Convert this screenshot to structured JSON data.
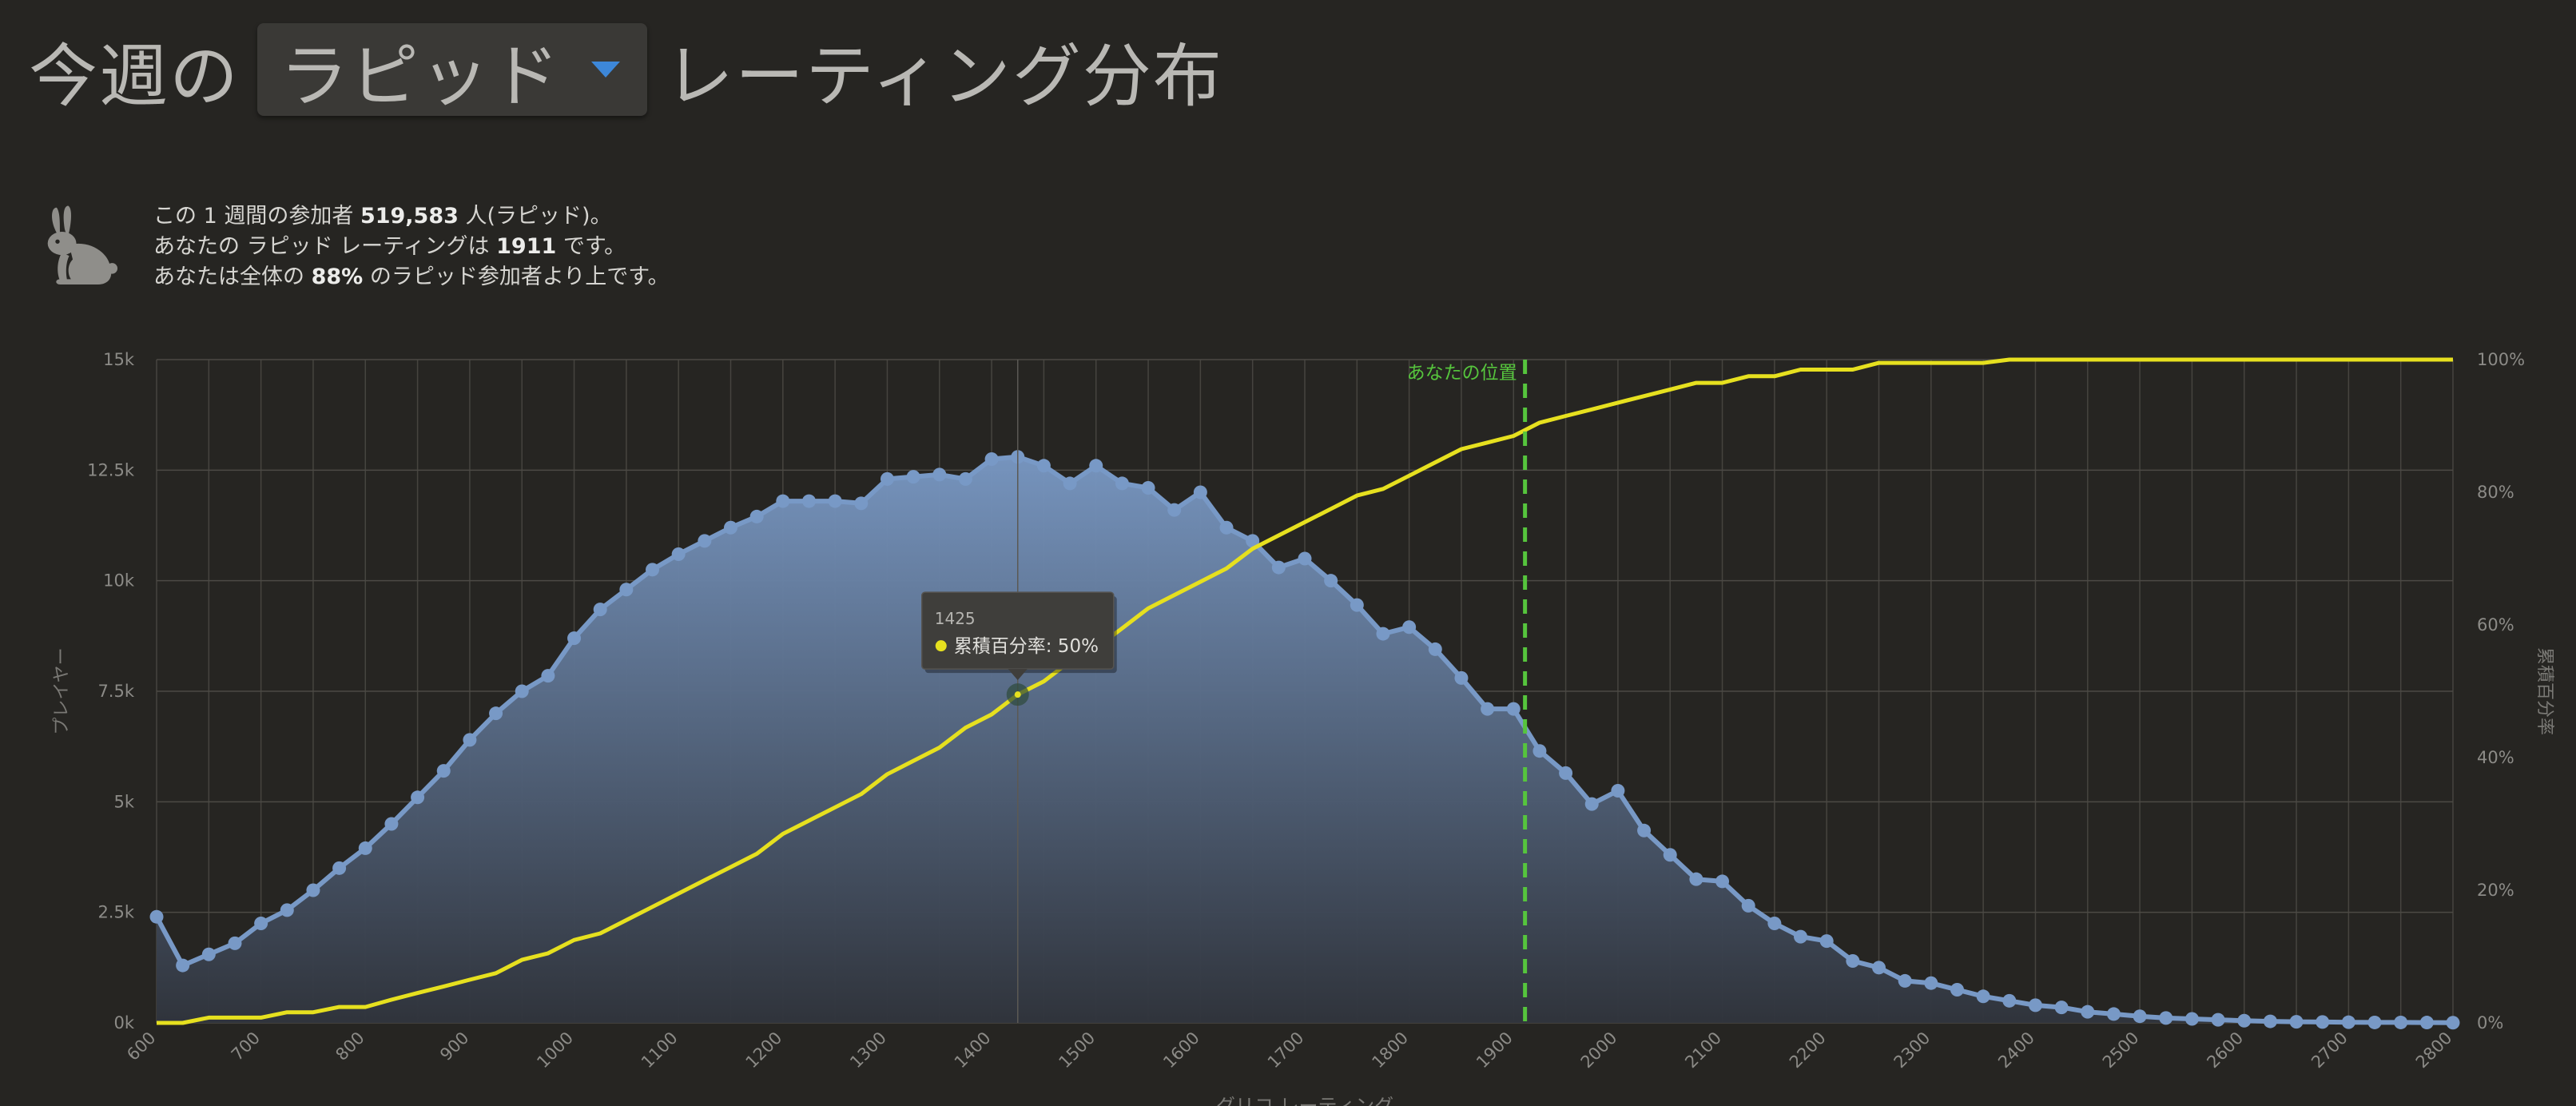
{
  "header": {
    "prefix": "今週の",
    "dropdown_value": "ラピッド",
    "suffix": "レーティング分布"
  },
  "info": {
    "line1": {
      "a": "この 1 週間の参加者 ",
      "count": "519,583",
      "b": " 人(ラピッド)。"
    },
    "line2": {
      "a": "あなたの ラピッド レーティングは ",
      "rating": "1911",
      "b": " です。"
    },
    "line3": {
      "a": "あなたは全体の ",
      "pct": "88%",
      "b": " のラピッド参加者より上です。"
    }
  },
  "colors": {
    "players_line": "#7899c6",
    "cumulative_line": "#e6e01f",
    "marker_line": "#56c53d",
    "background": "#262522"
  },
  "tooltip": {
    "title": "1425",
    "label": "累積百分率: 50%"
  },
  "chart_data": {
    "type": "area",
    "x": [
      600,
      625,
      650,
      675,
      700,
      725,
      750,
      775,
      800,
      825,
      850,
      875,
      900,
      925,
      950,
      975,
      1000,
      1025,
      1050,
      1075,
      1100,
      1125,
      1150,
      1175,
      1200,
      1225,
      1250,
      1275,
      1300,
      1325,
      1350,
      1375,
      1400,
      1425,
      1450,
      1475,
      1500,
      1525,
      1550,
      1575,
      1600,
      1625,
      1650,
      1675,
      1700,
      1725,
      1750,
      1775,
      1800,
      1825,
      1850,
      1875,
      1900,
      1925,
      1950,
      1975,
      2000,
      2025,
      2050,
      2075,
      2100,
      2125,
      2150,
      2175,
      2200,
      2225,
      2250,
      2275,
      2300,
      2325,
      2350,
      2375,
      2400,
      2425,
      2450,
      2475,
      2500,
      2525,
      2550,
      2575,
      2600,
      2625,
      2650,
      2675,
      2700,
      2725,
      2750,
      2775,
      2800
    ],
    "series": [
      {
        "axis": "left",
        "values": [
          2400,
          1300,
          1550,
          1800,
          2250,
          2550,
          3000,
          3500,
          3950,
          4500,
          5100,
          5700,
          6400,
          7000,
          7500,
          7850,
          8700,
          9350,
          9800,
          10250,
          10600,
          10900,
          11200,
          11450,
          11800,
          11800,
          11800,
          11750,
          12300,
          12350,
          12400,
          12300,
          12750,
          12800,
          12600,
          12200,
          12600,
          12200,
          12100,
          11600,
          12000,
          11200,
          10900,
          10300,
          10500,
          10000,
          9450,
          8800,
          8950,
          8450,
          7800,
          7100,
          7100,
          6150,
          5650,
          4950,
          5250,
          4350,
          3800,
          3250,
          3200,
          2650,
          2250,
          1950,
          1850,
          1400,
          1250,
          950,
          900,
          750,
          600,
          500,
          400,
          350,
          250,
          200,
          150,
          110,
          90,
          70,
          50,
          35,
          25,
          20,
          15,
          10,
          10,
          8,
          5
        ]
      },
      {
        "name": "累積百分率",
        "axis": "right",
        "values": [
          0,
          0,
          0.8,
          0.8,
          0.8,
          1.6,
          1.6,
          2.4,
          2.4,
          3.5,
          4.5,
          5.5,
          6.5,
          7.5,
          9.5,
          10.5,
          12.5,
          13.5,
          15.5,
          17.5,
          19.5,
          21.5,
          23.5,
          25.5,
          28.5,
          30.5,
          32.5,
          34.5,
          37.5,
          39.5,
          41.5,
          44.5,
          46.5,
          49.5,
          51.5,
          54.5,
          56.5,
          59.5,
          62.5,
          64.5,
          66.5,
          68.5,
          71.5,
          73.5,
          75.5,
          77.5,
          79.5,
          80.5,
          82.5,
          84.5,
          86.5,
          87.5,
          88.5,
          90.5,
          91.5,
          92.5,
          93.5,
          94.5,
          95.5,
          96.5,
          96.5,
          97.5,
          97.5,
          98.5,
          98.5,
          98.5,
          99.5,
          99.5,
          99.5,
          99.5,
          99.5,
          100,
          100,
          100,
          100,
          100,
          100,
          100,
          100,
          100,
          100,
          100,
          100,
          100,
          100,
          100,
          100,
          100,
          100
        ]
      }
    ],
    "xlabel": "グリコ レーティング",
    "ylabel_left": "プレイヤー",
    "ylabel_right": "累積百分率",
    "xlim": [
      600,
      2800
    ],
    "xticks": [
      600,
      700,
      800,
      900,
      1000,
      1100,
      1200,
      1300,
      1400,
      1500,
      1600,
      1700,
      1800,
      1900,
      2000,
      2100,
      2200,
      2300,
      2400,
      2500,
      2600,
      2700,
      2800
    ],
    "ylim_left": [
      0,
      15000
    ],
    "yticks_left": [
      0,
      2500,
      5000,
      7500,
      10000,
      12500,
      15000
    ],
    "yticks_left_labels": [
      "0k",
      "2.5k",
      "5k",
      "7.5k",
      "10k",
      "12.5k",
      "15k"
    ],
    "ylim_right": [
      0,
      100
    ],
    "yticks_right": [
      0,
      20,
      40,
      60,
      80,
      100
    ],
    "yticks_right_labels": [
      "0%",
      "20%",
      "40%",
      "60%",
      "80%",
      "100%"
    ],
    "marker": {
      "x": 1911,
      "label": "あなたの位置"
    },
    "highlight_x": 1425,
    "grid": true
  }
}
